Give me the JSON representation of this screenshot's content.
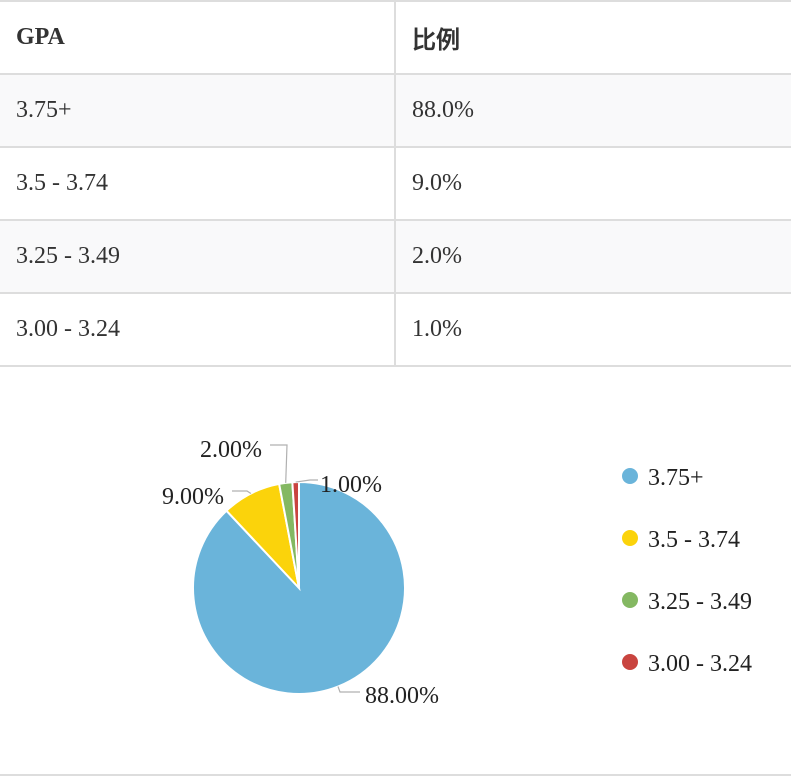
{
  "table": {
    "headers": [
      "GPA",
      "比例"
    ],
    "rows": [
      [
        "3.75+",
        "88.0%"
      ],
      [
        "3.5 - 3.74",
        "9.0%"
      ],
      [
        "3.25 - 3.49",
        "2.0%"
      ],
      [
        "3.00 - 3.24",
        "1.0%"
      ]
    ]
  },
  "chart_data": {
    "type": "pie",
    "categories": [
      "3.75+",
      "3.5 - 3.74",
      "3.25 - 3.49",
      "3.00 - 3.24"
    ],
    "values": [
      88,
      9,
      2,
      1
    ],
    "data_labels": [
      "88.00%",
      "9.00%",
      "2.00%",
      "1.00%"
    ],
    "colors": [
      "#6ab4da",
      "#fbd30b",
      "#84b862",
      "#c9443f"
    ],
    "legend": {
      "position": "right",
      "entries": [
        "3.75+",
        "3.5 - 3.74",
        "3.25 - 3.49",
        "3.00 - 3.24"
      ]
    }
  }
}
